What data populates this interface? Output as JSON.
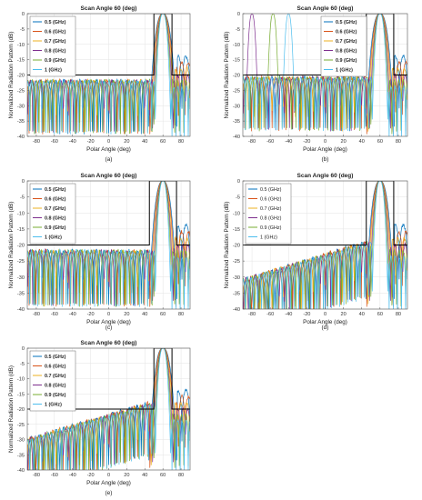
{
  "colors": {
    "0.5": "#0072bd",
    "0.6": "#d95319",
    "0.7": "#edb120",
    "0.8": "#7e2f8e",
    "0.9": "#77ac30",
    "1": "#4dbeee",
    "mask": "#000000",
    "grid": "#e3e3e3"
  },
  "chart_data": [
    {
      "id": "a",
      "type": "line",
      "title": "Scan Angle 60 (deg)",
      "xlabel": "Polar Angle (deg)",
      "ylabel": "Normalized Radiation Pattern (dB)",
      "caption": "(a)",
      "xlim": [
        -90,
        90
      ],
      "ylim": [
        -40,
        0
      ],
      "xticks": [
        -80,
        -60,
        -40,
        -20,
        0,
        20,
        40,
        60,
        80
      ],
      "yticks": [
        0,
        -5,
        -10,
        -15,
        -20,
        -25,
        -30,
        -35,
        -40
      ],
      "grid": true,
      "legend_position": "top-left",
      "legend_style": "bold",
      "series": [
        {
          "name": "0.5 (GHz)",
          "freq": 0.5
        },
        {
          "name": "0.6 (GHz)",
          "freq": 0.6
        },
        {
          "name": "0.7 (GHz)",
          "freq": 0.7
        },
        {
          "name": "0.8 (GHz)",
          "freq": 0.8
        },
        {
          "name": "0.9 (GHz)",
          "freq": 0.9
        },
        {
          "name": "1 (GHz)",
          "freq": 1.0
        }
      ],
      "mask": {
        "x": [
          -90,
          50,
          50,
          70,
          70,
          90
        ],
        "y": [
          -20,
          -20,
          0,
          0,
          -20,
          -20
        ]
      },
      "sidelobe_envelope": "flat",
      "sidelobe_level": [
        -22,
        -22
      ],
      "mainlobe_peak": 60
    },
    {
      "id": "b",
      "type": "line",
      "title": "Scan Angle 60 (deg)",
      "xlabel": "Polar Angle (deg)",
      "ylabel": "Normalized Radiation Pattern (dB)",
      "caption": "(b)",
      "xlim": [
        -90,
        90
      ],
      "ylim": [
        -40,
        0
      ],
      "xticks": [
        -80,
        -60,
        -40,
        -20,
        0,
        20,
        40,
        60,
        80
      ],
      "yticks": [
        0,
        -5,
        -10,
        -15,
        -20,
        -25,
        -30,
        -35,
        -40
      ],
      "grid": true,
      "legend_position": "top-right",
      "legend_style": "bold",
      "series": [
        {
          "name": "0.5 (GHz)",
          "freq": 0.5
        },
        {
          "name": "0.6 (GHz)",
          "freq": 0.6
        },
        {
          "name": "0.7 (GHz)",
          "freq": 0.7
        },
        {
          "name": "0.8 (GHz)",
          "freq": 0.8
        },
        {
          "name": "0.9 (GHz)",
          "freq": 0.9
        },
        {
          "name": "1 (GHz)",
          "freq": 1.0
        }
      ],
      "mask": {
        "x": [
          -90,
          45,
          45,
          75,
          75,
          90
        ],
        "y": [
          -20,
          -20,
          0,
          0,
          -20,
          -20
        ]
      },
      "sidelobe_envelope": "flat",
      "sidelobe_level": [
        -21,
        -21
      ],
      "mainlobe_peak": 60,
      "grating_lobes": [
        {
          "series": "0.8 (GHz)",
          "center": -80
        },
        {
          "series": "0.9 (GHz)",
          "center": -57
        },
        {
          "series": "1 (GHz)",
          "center": -40
        }
      ]
    },
    {
      "id": "c",
      "type": "line",
      "title": "Scan Angle 60 (deg)",
      "xlabel": "Polar Angle (deg)",
      "ylabel": "Normalized Radiation Pattern (dB)",
      "caption": "(c)",
      "xlim": [
        -90,
        90
      ],
      "ylim": [
        -40,
        0
      ],
      "xticks": [
        -80,
        -60,
        -40,
        -20,
        0,
        20,
        40,
        60,
        80
      ],
      "yticks": [
        0,
        -5,
        -10,
        -15,
        -20,
        -25,
        -30,
        -35,
        -40
      ],
      "grid": true,
      "legend_position": "top-left",
      "legend_style": "bold",
      "series": [
        {
          "name": "0.5 (GHz)",
          "freq": 0.5
        },
        {
          "name": "0.6 (GHz)",
          "freq": 0.6
        },
        {
          "name": "0.7 (GHz)",
          "freq": 0.7
        },
        {
          "name": "0.8 (GHz)",
          "freq": 0.8
        },
        {
          "name": "0.9 (GHz)",
          "freq": 0.9
        },
        {
          "name": "1 (GHz)",
          "freq": 1.0
        }
      ],
      "mask": {
        "x": [
          -90,
          45,
          45,
          75,
          75,
          90
        ],
        "y": [
          -20,
          -20,
          0,
          0,
          -20,
          -20
        ]
      },
      "sidelobe_envelope": "flat",
      "sidelobe_level": [
        -22,
        -22
      ],
      "mainlobe_peak": 60
    },
    {
      "id": "d",
      "type": "line",
      "title": "Scan Angle 60 (deg)",
      "xlabel": "Polar Angle (deg)",
      "ylabel": "Normalized Radiation Pattern (dB)",
      "caption": "(d)",
      "xlim": [
        -90,
        90
      ],
      "ylim": [
        -40,
        0
      ],
      "xticks": [
        -80,
        -60,
        -40,
        -20,
        0,
        20,
        40,
        60,
        80
      ],
      "yticks": [
        0,
        -5,
        -10,
        -15,
        -20,
        -25,
        -30,
        -35,
        -40
      ],
      "grid": true,
      "legend_position": "top-left",
      "legend_style": "normal",
      "series": [
        {
          "name": "0.5 (GHz)",
          "freq": 0.5
        },
        {
          "name": "0.6 (GHz)",
          "freq": 0.6
        },
        {
          "name": "0.7 (GHz)",
          "freq": 0.7
        },
        {
          "name": "0.8 (GHz)",
          "freq": 0.8
        },
        {
          "name": "0.9 (GHz)",
          "freq": 0.9
        },
        {
          "name": "1 (GHz)",
          "freq": 1.0
        }
      ],
      "mask": {
        "x": [
          -90,
          45,
          45,
          75,
          75,
          90
        ],
        "y": [
          -20,
          -20,
          0,
          0,
          -20,
          -20
        ]
      },
      "sidelobe_envelope": "rising",
      "sidelobe_level": [
        -31,
        -19
      ],
      "mainlobe_peak": 60
    },
    {
      "id": "e",
      "type": "line",
      "title": "Scan Angle 60 (deg)",
      "xlabel": "Polar Angle (deg)",
      "ylabel": "Normalized Radiation Pattern (dB)",
      "caption": "(e)",
      "xlim": [
        -90,
        90
      ],
      "ylim": [
        -40,
        0
      ],
      "xticks": [
        -80,
        -60,
        -40,
        -20,
        0,
        20,
        40,
        60,
        80
      ],
      "yticks": [
        0,
        -5,
        -10,
        -15,
        -20,
        -25,
        -30,
        -35,
        -40
      ],
      "grid": true,
      "legend_position": "top-left",
      "legend_style": "bold",
      "series": [
        {
          "name": "0.5 (GHz)",
          "freq": 0.5
        },
        {
          "name": "0.6 (GHz)",
          "freq": 0.6
        },
        {
          "name": "0.7 (GHz)",
          "freq": 0.7
        },
        {
          "name": "0.8 (GHz)",
          "freq": 0.8
        },
        {
          "name": "0.9 (GHz)",
          "freq": 0.9
        },
        {
          "name": "1 (GHz)",
          "freq": 1.0
        }
      ],
      "mask": {
        "x": [
          -90,
          50,
          50,
          70,
          70,
          90
        ],
        "y": [
          -20,
          -20,
          0,
          0,
          -20,
          -20
        ]
      },
      "sidelobe_envelope": "rising",
      "sidelobe_level": [
        -30,
        -18
      ],
      "mainlobe_peak": 60
    }
  ]
}
